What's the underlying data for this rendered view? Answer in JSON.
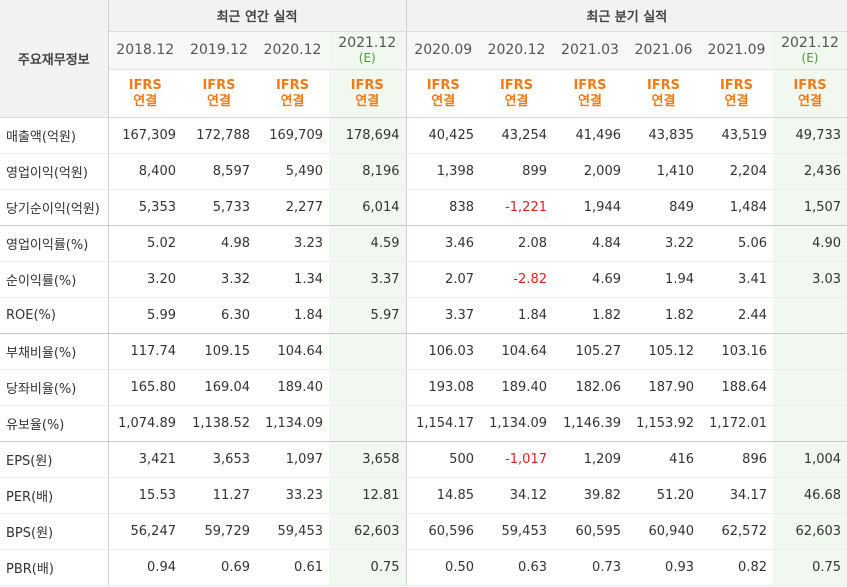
{
  "corner_label": "주요재무정보",
  "groups": {
    "annual": "최근 연간 실적",
    "quarterly": "최근 분기 실적"
  },
  "periods": [
    {
      "label": "2018.12",
      "sub": ""
    },
    {
      "label": "2019.12",
      "sub": ""
    },
    {
      "label": "2020.12",
      "sub": ""
    },
    {
      "label": "2021.12",
      "sub": "(E)"
    },
    {
      "label": "2020.09",
      "sub": ""
    },
    {
      "label": "2020.12",
      "sub": ""
    },
    {
      "label": "2021.03",
      "sub": ""
    },
    {
      "label": "2021.06",
      "sub": ""
    },
    {
      "label": "2021.09",
      "sub": ""
    },
    {
      "label": "2021.12",
      "sub": "(E)"
    }
  ],
  "basis": {
    "top": "IFRS",
    "bottom": "연결"
  },
  "rows": [
    {
      "label": "매출액(억원)",
      "values": [
        "167,309",
        "172,788",
        "169,709",
        "178,694",
        "40,425",
        "43,254",
        "41,496",
        "43,835",
        "43,519",
        "49,733"
      ]
    },
    {
      "label": "영업이익(억원)",
      "values": [
        "8,400",
        "8,597",
        "5,490",
        "8,196",
        "1,398",
        "899",
        "2,009",
        "1,410",
        "2,204",
        "2,436"
      ]
    },
    {
      "label": "당기순이익(억원)",
      "values": [
        "5,353",
        "5,733",
        "2,277",
        "6,014",
        "838",
        "-1,221",
        "1,944",
        "849",
        "1,484",
        "1,507"
      ]
    },
    {
      "label": "영업이익률(%)",
      "values": [
        "5.02",
        "4.98",
        "3.23",
        "4.59",
        "3.46",
        "2.08",
        "4.84",
        "3.22",
        "5.06",
        "4.90"
      ]
    },
    {
      "label": "순이익률(%)",
      "values": [
        "3.20",
        "3.32",
        "1.34",
        "3.37",
        "2.07",
        "-2.82",
        "4.69",
        "1.94",
        "3.41",
        "3.03"
      ]
    },
    {
      "label": "ROE(%)",
      "values": [
        "5.99",
        "6.30",
        "1.84",
        "5.97",
        "3.37",
        "1.84",
        "1.82",
        "1.82",
        "2.44",
        ""
      ]
    },
    {
      "label": "부채비율(%)",
      "values": [
        "117.74",
        "109.15",
        "104.64",
        "",
        "106.03",
        "104.64",
        "105.27",
        "105.12",
        "103.16",
        ""
      ]
    },
    {
      "label": "당좌비율(%)",
      "values": [
        "165.80",
        "169.04",
        "189.40",
        "",
        "193.08",
        "189.40",
        "182.06",
        "187.90",
        "188.64",
        ""
      ]
    },
    {
      "label": "유보율(%)",
      "values": [
        "1,074.89",
        "1,138.52",
        "1,134.09",
        "",
        "1,154.17",
        "1,134.09",
        "1,146.39",
        "1,153.92",
        "1,172.01",
        ""
      ]
    },
    {
      "label": "EPS(원)",
      "values": [
        "3,421",
        "3,653",
        "1,097",
        "3,658",
        "500",
        "-1,017",
        "1,209",
        "416",
        "896",
        "1,004"
      ]
    },
    {
      "label": "PER(배)",
      "values": [
        "15.53",
        "11.27",
        "33.23",
        "12.81",
        "14.85",
        "34.12",
        "39.82",
        "51.20",
        "34.17",
        "46.68"
      ]
    },
    {
      "label": "BPS(원)",
      "values": [
        "56,247",
        "59,729",
        "59,453",
        "62,603",
        "60,596",
        "59,453",
        "60,595",
        "60,940",
        "62,572",
        "62,603"
      ]
    },
    {
      "label": "PBR(배)",
      "values": [
        "0.94",
        "0.69",
        "0.61",
        "0.75",
        "0.50",
        "0.63",
        "0.73",
        "0.93",
        "0.82",
        "0.75"
      ]
    }
  ],
  "colors": {
    "estimate_bg": "#f0f8ef",
    "basis_text": "#f07b16",
    "negative": "#e0201b",
    "estimate_sub": "#4a9a36"
  }
}
